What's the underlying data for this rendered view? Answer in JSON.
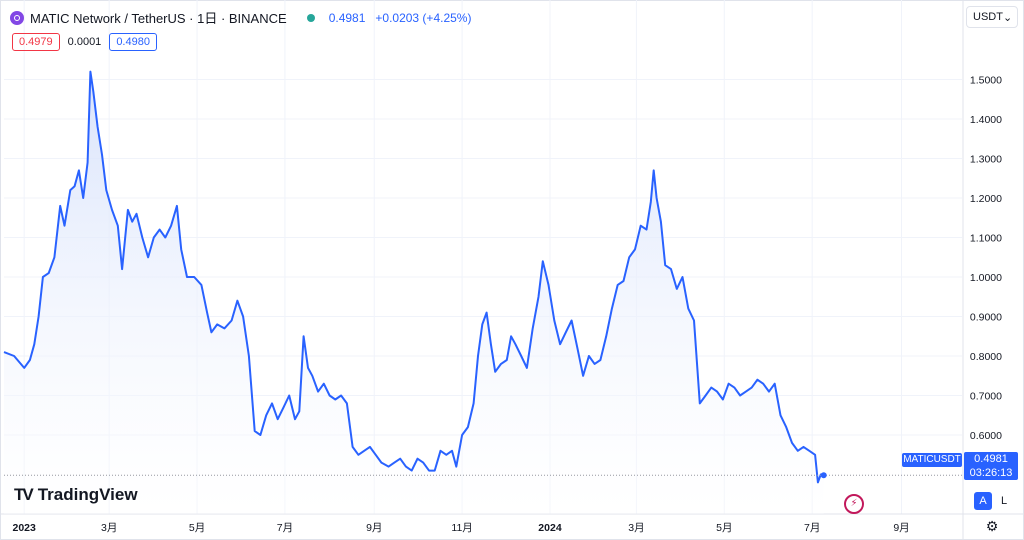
{
  "header": {
    "symbol_title": "MATIC Network / TetherUS · 1日 · BINANCE",
    "last_price": "0.4981",
    "change": "+0.0203 (+4.25%)",
    "sell_price": "0.4979",
    "spread": "0.0001",
    "buy_price": "0.4980"
  },
  "currency_selector": {
    "label": "USDT",
    "chevron": "⌄"
  },
  "price_tag": {
    "symbol": "MATICUSDT",
    "price": "0.4981",
    "countdown": "03:26:13"
  },
  "branding": {
    "logo_mark": "TV",
    "logo_text": "TradingView"
  },
  "scale_buttons": {
    "auto": "A",
    "log": "L"
  },
  "colors": {
    "line": "#2962ff",
    "fill_top": "#d6e1fb",
    "grid": "#f0f3fa",
    "last_price_line": "#9598a1"
  },
  "icons": {
    "currency_chevron": "chevron-down-icon",
    "bolt": "lightning-icon",
    "settings": "gear-icon"
  },
  "chart_data": {
    "type": "area",
    "series": [
      {
        "name": "MATICUSDT",
        "points": [
          [
            "2022-12-18",
            0.81
          ],
          [
            "2022-12-25",
            0.8
          ],
          [
            "2023-01-01",
            0.77
          ],
          [
            "2023-01-05",
            0.79
          ],
          [
            "2023-01-08",
            0.83
          ],
          [
            "2023-01-11",
            0.9
          ],
          [
            "2023-01-14",
            1.0
          ],
          [
            "2023-01-18",
            1.01
          ],
          [
            "2023-01-22",
            1.05
          ],
          [
            "2023-01-26",
            1.18
          ],
          [
            "2023-01-29",
            1.13
          ],
          [
            "2023-02-02",
            1.22
          ],
          [
            "2023-02-05",
            1.23
          ],
          [
            "2023-02-08",
            1.27
          ],
          [
            "2023-02-11",
            1.2
          ],
          [
            "2023-02-14",
            1.29
          ],
          [
            "2023-02-16",
            1.52
          ],
          [
            "2023-02-18",
            1.47
          ],
          [
            "2023-02-21",
            1.38
          ],
          [
            "2023-02-24",
            1.31
          ],
          [
            "2023-02-27",
            1.22
          ],
          [
            "2023-03-03",
            1.17
          ],
          [
            "2023-03-07",
            1.13
          ],
          [
            "2023-03-10",
            1.02
          ],
          [
            "2023-03-14",
            1.17
          ],
          [
            "2023-03-17",
            1.14
          ],
          [
            "2023-03-20",
            1.16
          ],
          [
            "2023-03-24",
            1.1
          ],
          [
            "2023-03-28",
            1.05
          ],
          [
            "2023-04-01",
            1.1
          ],
          [
            "2023-04-05",
            1.12
          ],
          [
            "2023-04-09",
            1.1
          ],
          [
            "2023-04-13",
            1.13
          ],
          [
            "2023-04-17",
            1.18
          ],
          [
            "2023-04-20",
            1.07
          ],
          [
            "2023-04-24",
            1.0
          ],
          [
            "2023-04-29",
            1.0
          ],
          [
            "2023-05-04",
            0.98
          ],
          [
            "2023-05-08",
            0.91
          ],
          [
            "2023-05-11",
            0.86
          ],
          [
            "2023-05-15",
            0.88
          ],
          [
            "2023-05-20",
            0.87
          ],
          [
            "2023-05-25",
            0.89
          ],
          [
            "2023-05-29",
            0.94
          ],
          [
            "2023-06-02",
            0.9
          ],
          [
            "2023-06-06",
            0.8
          ],
          [
            "2023-06-10",
            0.61
          ],
          [
            "2023-06-14",
            0.6
          ],
          [
            "2023-06-18",
            0.65
          ],
          [
            "2023-06-22",
            0.68
          ],
          [
            "2023-06-26",
            0.64
          ],
          [
            "2023-06-30",
            0.67
          ],
          [
            "2023-07-04",
            0.7
          ],
          [
            "2023-07-08",
            0.64
          ],
          [
            "2023-07-11",
            0.66
          ],
          [
            "2023-07-14",
            0.85
          ],
          [
            "2023-07-17",
            0.77
          ],
          [
            "2023-07-20",
            0.75
          ],
          [
            "2023-07-24",
            0.71
          ],
          [
            "2023-07-28",
            0.73
          ],
          [
            "2023-08-01",
            0.7
          ],
          [
            "2023-08-05",
            0.69
          ],
          [
            "2023-08-09",
            0.7
          ],
          [
            "2023-08-13",
            0.68
          ],
          [
            "2023-08-17",
            0.57
          ],
          [
            "2023-08-21",
            0.55
          ],
          [
            "2023-08-25",
            0.56
          ],
          [
            "2023-08-29",
            0.57
          ],
          [
            "2023-09-02",
            0.55
          ],
          [
            "2023-09-06",
            0.53
          ],
          [
            "2023-09-11",
            0.52
          ],
          [
            "2023-09-15",
            0.53
          ],
          [
            "2023-09-19",
            0.54
          ],
          [
            "2023-09-23",
            0.52
          ],
          [
            "2023-09-27",
            0.51
          ],
          [
            "2023-10-01",
            0.54
          ],
          [
            "2023-10-05",
            0.53
          ],
          [
            "2023-10-09",
            0.51
          ],
          [
            "2023-10-13",
            0.51
          ],
          [
            "2023-10-17",
            0.56
          ],
          [
            "2023-10-21",
            0.55
          ],
          [
            "2023-10-25",
            0.56
          ],
          [
            "2023-10-28",
            0.52
          ],
          [
            "2023-11-01",
            0.6
          ],
          [
            "2023-11-05",
            0.62
          ],
          [
            "2023-11-09",
            0.68
          ],
          [
            "2023-11-12",
            0.8
          ],
          [
            "2023-11-15",
            0.88
          ],
          [
            "2023-11-18",
            0.91
          ],
          [
            "2023-11-21",
            0.83
          ],
          [
            "2023-11-24",
            0.76
          ],
          [
            "2023-11-28",
            0.78
          ],
          [
            "2023-12-02",
            0.79
          ],
          [
            "2023-12-05",
            0.85
          ],
          [
            "2023-12-08",
            0.83
          ],
          [
            "2023-12-12",
            0.8
          ],
          [
            "2023-12-16",
            0.77
          ],
          [
            "2023-12-20",
            0.87
          ],
          [
            "2023-12-24",
            0.95
          ],
          [
            "2023-12-27",
            1.04
          ],
          [
            "2023-12-31",
            0.98
          ],
          [
            "2024-01-04",
            0.89
          ],
          [
            "2024-01-08",
            0.83
          ],
          [
            "2024-01-12",
            0.86
          ],
          [
            "2024-01-16",
            0.89
          ],
          [
            "2024-01-20",
            0.82
          ],
          [
            "2024-01-24",
            0.75
          ],
          [
            "2024-01-28",
            0.8
          ],
          [
            "2024-02-01",
            0.78
          ],
          [
            "2024-02-05",
            0.79
          ],
          [
            "2024-02-09",
            0.85
          ],
          [
            "2024-02-13",
            0.92
          ],
          [
            "2024-02-17",
            0.98
          ],
          [
            "2024-02-21",
            0.99
          ],
          [
            "2024-02-25",
            1.05
          ],
          [
            "2024-02-29",
            1.07
          ],
          [
            "2024-03-04",
            1.13
          ],
          [
            "2024-03-08",
            1.12
          ],
          [
            "2024-03-11",
            1.19
          ],
          [
            "2024-03-13",
            1.27
          ],
          [
            "2024-03-15",
            1.2
          ],
          [
            "2024-03-18",
            1.14
          ],
          [
            "2024-03-21",
            1.03
          ],
          [
            "2024-03-25",
            1.02
          ],
          [
            "2024-03-29",
            0.97
          ],
          [
            "2024-04-02",
            1.0
          ],
          [
            "2024-04-06",
            0.92
          ],
          [
            "2024-04-10",
            0.89
          ],
          [
            "2024-04-14",
            0.68
          ],
          [
            "2024-04-18",
            0.7
          ],
          [
            "2024-04-22",
            0.72
          ],
          [
            "2024-04-26",
            0.71
          ],
          [
            "2024-04-30",
            0.69
          ],
          [
            "2024-05-04",
            0.73
          ],
          [
            "2024-05-08",
            0.72
          ],
          [
            "2024-05-12",
            0.7
          ],
          [
            "2024-05-16",
            0.71
          ],
          [
            "2024-05-20",
            0.72
          ],
          [
            "2024-05-24",
            0.74
          ],
          [
            "2024-05-28",
            0.73
          ],
          [
            "2024-06-01",
            0.71
          ],
          [
            "2024-06-05",
            0.73
          ],
          [
            "2024-06-09",
            0.65
          ],
          [
            "2024-06-13",
            0.62
          ],
          [
            "2024-06-17",
            0.58
          ],
          [
            "2024-06-21",
            0.56
          ],
          [
            "2024-06-25",
            0.57
          ],
          [
            "2024-06-29",
            0.56
          ],
          [
            "2024-07-03",
            0.55
          ],
          [
            "2024-07-05",
            0.48
          ],
          [
            "2024-07-07",
            0.5
          ],
          [
            "2024-07-09",
            0.498
          ]
        ]
      }
    ],
    "y_axis": {
      "ticks": [
        "1.5000",
        "1.4000",
        "1.3000",
        "1.2000",
        "1.1000",
        "1.0000",
        "0.9000",
        "0.8000",
        "0.7000",
        "0.6000"
      ],
      "range": [
        0.4,
        1.6
      ]
    },
    "x_axis": {
      "ticks": [
        {
          "date": "2023-01-01",
          "label": "2023"
        },
        {
          "date": "2023-03-01",
          "label": "3月"
        },
        {
          "date": "2023-05-01",
          "label": "5月"
        },
        {
          "date": "2023-07-01",
          "label": "7月"
        },
        {
          "date": "2023-09-01",
          "label": "9月"
        },
        {
          "date": "2023-11-01",
          "label": "11月"
        },
        {
          "date": "2024-01-01",
          "label": "2024"
        },
        {
          "date": "2024-03-01",
          "label": "3月"
        },
        {
          "date": "2024-05-01",
          "label": "5月"
        },
        {
          "date": "2024-07-01",
          "label": "7月"
        },
        {
          "date": "2024-09-01",
          "label": "9月"
        }
      ],
      "range": [
        "2022-12-18",
        "2024-10-13"
      ]
    },
    "last_value": 0.4981,
    "grid": true
  }
}
